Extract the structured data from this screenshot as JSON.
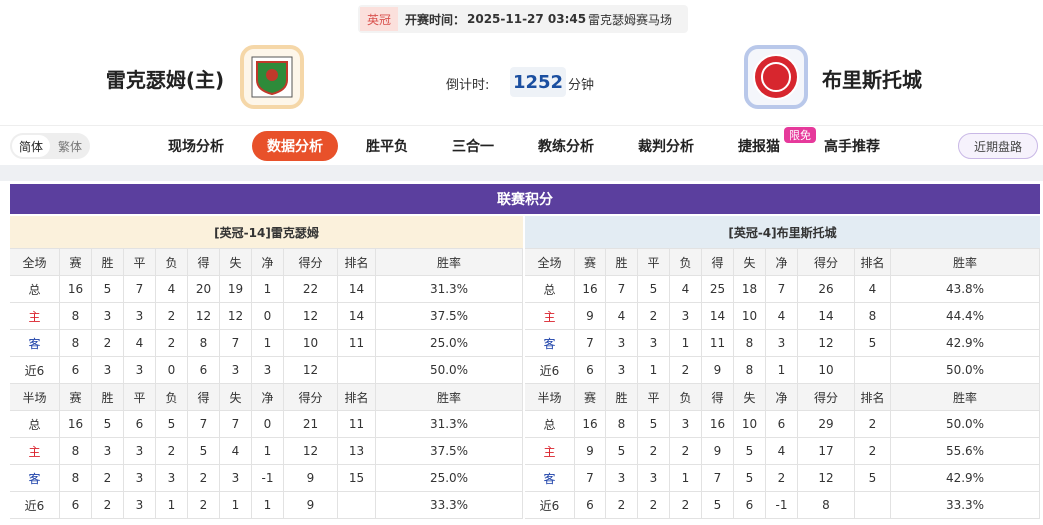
{
  "header": {
    "league": "英冠",
    "kickoff_label": "开赛时间：",
    "kickoff": "2025-11-27 03:45",
    "venue": "雷克瑟姆赛马场"
  },
  "match": {
    "home": "雷克瑟姆(主)",
    "countdown_label": "倒计时:",
    "countdown": "1252",
    "countdown_unit": "分钟",
    "away": "布里斯托城"
  },
  "nav": {
    "lang": [
      "简体",
      "繁体"
    ],
    "tabs": [
      "现场分析",
      "数据分析",
      "胜平负",
      "三合一",
      "教练分析",
      "裁判分析",
      "捷报猫",
      "高手推荐"
    ],
    "badge": "限免",
    "recent": "近期盘路"
  },
  "standings": {
    "title": "联赛积分",
    "teams": [
      {
        "name": "[英冠-14]雷克瑟姆",
        "sections": [
          {
            "columns": [
              "全场",
              "赛",
              "胜",
              "平",
              "负",
              "得",
              "失",
              "净",
              "得分",
              "排名",
              "胜率"
            ],
            "rows": [
              [
                "总",
                "16",
                "5",
                "7",
                "4",
                "20",
                "19",
                "1",
                "22",
                "14",
                "31.3%"
              ],
              [
                "主",
                "8",
                "3",
                "3",
                "2",
                "12",
                "12",
                "0",
                "12",
                "14",
                "37.5%"
              ],
              [
                "客",
                "8",
                "2",
                "4",
                "2",
                "8",
                "7",
                "1",
                "10",
                "11",
                "25.0%"
              ],
              [
                "近6",
                "6",
                "3",
                "3",
                "0",
                "6",
                "3",
                "3",
                "12",
                null,
                "50.0%"
              ]
            ]
          },
          {
            "columns": [
              "半场",
              "赛",
              "胜",
              "平",
              "负",
              "得",
              "失",
              "净",
              "得分",
              "排名",
              "胜率"
            ],
            "rows": [
              [
                "总",
                "16",
                "5",
                "6",
                "5",
                "7",
                "7",
                "0",
                "21",
                "11",
                "31.3%"
              ],
              [
                "主",
                "8",
                "3",
                "3",
                "2",
                "5",
                "4",
                "1",
                "12",
                "13",
                "37.5%"
              ],
              [
                "客",
                "8",
                "2",
                "3",
                "3",
                "2",
                "3",
                "-1",
                "9",
                "15",
                "25.0%"
              ],
              [
                "近6",
                "6",
                "2",
                "3",
                "1",
                "2",
                "1",
                "1",
                "9",
                null,
                "33.3%"
              ]
            ]
          }
        ]
      },
      {
        "name": "[英冠-4]布里斯托城",
        "sections": [
          {
            "columns": [
              "全场",
              "赛",
              "胜",
              "平",
              "负",
              "得",
              "失",
              "净",
              "得分",
              "排名",
              "胜率"
            ],
            "rows": [
              [
                "总",
                "16",
                "7",
                "5",
                "4",
                "25",
                "18",
                "7",
                "26",
                "4",
                "43.8%"
              ],
              [
                "主",
                "9",
                "4",
                "2",
                "3",
                "14",
                "10",
                "4",
                "14",
                "8",
                "44.4%"
              ],
              [
                "客",
                "7",
                "3",
                "3",
                "1",
                "11",
                "8",
                "3",
                "12",
                "5",
                "42.9%"
              ],
              [
                "近6",
                "6",
                "3",
                "1",
                "2",
                "9",
                "8",
                "1",
                "10",
                null,
                "50.0%"
              ]
            ]
          },
          {
            "columns": [
              "半场",
              "赛",
              "胜",
              "平",
              "负",
              "得",
              "失",
              "净",
              "得分",
              "排名",
              "胜率"
            ],
            "rows": [
              [
                "总",
                "16",
                "8",
                "5",
                "3",
                "16",
                "10",
                "6",
                "29",
                "2",
                "50.0%"
              ],
              [
                "主",
                "9",
                "5",
                "2",
                "2",
                "9",
                "5",
                "4",
                "17",
                "2",
                "55.6%"
              ],
              [
                "客",
                "7",
                "3",
                "3",
                "1",
                "7",
                "5",
                "2",
                "12",
                "5",
                "42.9%"
              ],
              [
                "近6",
                "6",
                "2",
                "2",
                "2",
                "5",
                "6",
                "-1",
                "8",
                null,
                "33.3%"
              ]
            ]
          }
        ]
      }
    ]
  }
}
